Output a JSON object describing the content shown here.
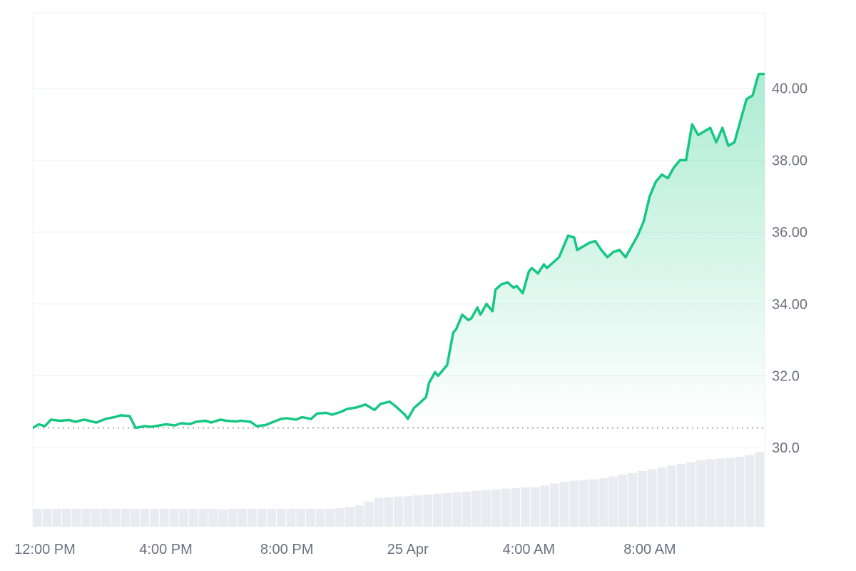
{
  "chart_data": {
    "type": "area",
    "title": "",
    "xlabel": "",
    "ylabel": "",
    "x_ticks": [
      "12:00 PM",
      "4:00 PM",
      "8:00 PM",
      "25 Apr",
      "4:00 AM",
      "8:00 AM"
    ],
    "x_tick_hours": [
      0,
      4,
      8,
      12,
      16,
      20
    ],
    "x_range_hours": [
      -0.4,
      23.8
    ],
    "y_ticks": [
      "40.00",
      "38.00",
      "36.00",
      "34.00",
      "32.0",
      "30.0"
    ],
    "y_tick_values": [
      40,
      38,
      36,
      34,
      32,
      30
    ],
    "ylim": [
      27.8,
      42.1
    ],
    "baseline": 30.55,
    "grid": true,
    "colors": {
      "up": "#16c784",
      "down": "#ea3943",
      "grid": "#eef0f3",
      "volume": "#e9ebf0",
      "baseline": "#8b8b8b"
    },
    "series": [
      {
        "x": [
          -0.4,
          -0.2,
          0.0,
          0.2,
          0.5,
          0.8,
          1.0,
          1.3,
          1.5,
          1.7,
          2.0,
          2.3,
          2.5,
          2.8,
          3.0,
          3.3,
          3.5,
          3.8,
          4.0,
          4.3,
          4.5,
          4.8,
          5.0,
          5.3,
          5.5,
          5.8,
          6.0,
          6.3,
          6.5,
          6.8,
          7.0,
          7.3,
          7.5,
          7.8,
          8.0,
          8.3,
          8.5,
          8.8,
          9.0,
          9.3,
          9.5,
          9.8,
          10.0,
          10.3,
          10.6,
          10.9,
          11.1,
          11.4,
          11.6,
          11.9,
          12.0,
          12.2,
          12.4,
          12.6,
          12.7,
          12.9,
          13.0,
          13.2,
          13.3,
          13.5,
          13.6,
          13.8,
          14.0,
          14.1,
          14.3,
          14.4,
          14.6,
          14.8,
          14.9,
          15.1,
          15.3,
          15.5,
          15.6,
          15.8,
          16.0,
          16.1,
          16.3,
          16.5,
          16.6,
          16.8,
          17.0,
          17.1,
          17.3,
          17.5,
          17.6,
          17.8,
          18.0,
          18.2,
          18.4,
          18.6,
          18.8,
          19.0,
          19.2,
          19.4,
          19.6,
          19.8,
          20.0,
          20.2,
          20.4,
          20.6,
          20.8,
          21.0,
          21.2,
          21.4,
          21.6,
          21.8,
          22.0,
          22.2,
          22.4,
          22.6,
          22.8,
          23.0,
          23.2,
          23.4,
          23.6,
          23.8
        ],
        "y": [
          30.55,
          30.65,
          30.6,
          30.78,
          30.75,
          30.77,
          30.72,
          30.78,
          30.74,
          30.7,
          30.8,
          30.85,
          30.9,
          30.88,
          30.55,
          30.6,
          30.58,
          30.62,
          30.65,
          30.62,
          30.68,
          30.66,
          30.72,
          30.75,
          30.7,
          30.78,
          30.75,
          30.73,
          30.75,
          30.72,
          30.6,
          30.63,
          30.7,
          30.8,
          30.82,
          30.78,
          30.85,
          30.8,
          30.95,
          30.97,
          30.92,
          31.0,
          31.08,
          31.12,
          31.2,
          31.05,
          31.22,
          31.28,
          31.15,
          30.92,
          30.8,
          31.1,
          31.25,
          31.4,
          31.8,
          32.1,
          32.0,
          32.2,
          32.3,
          33.2,
          33.3,
          33.7,
          33.55,
          33.6,
          33.9,
          33.7,
          34.0,
          33.8,
          34.4,
          34.55,
          34.6,
          34.45,
          34.5,
          34.3,
          34.9,
          35.0,
          34.85,
          35.1,
          35.0,
          35.15,
          35.3,
          35.5,
          35.9,
          35.85,
          35.5,
          35.6,
          35.7,
          35.75,
          35.5,
          35.3,
          35.45,
          35.5,
          35.3,
          35.6,
          35.9,
          36.3,
          37.0,
          37.4,
          37.6,
          37.5,
          37.8,
          38.0,
          38.0,
          39.0,
          38.7,
          38.8,
          38.9,
          38.5,
          38.9,
          38.4,
          38.5,
          39.1,
          39.7,
          39.8,
          40.4,
          40.4
        ]
      }
    ],
    "volume_x_range_hours": [
      -0.4,
      23.8
    ],
    "volume": [
      28.3,
      28.3,
      28.3,
      28.3,
      28.3,
      28.3,
      28.3,
      28.3,
      28.3,
      28.3,
      28.3,
      28.3,
      28.3,
      28.3,
      28.3,
      28.3,
      28.3,
      28.3,
      28.3,
      28.28,
      28.3,
      28.3,
      28.3,
      28.3,
      28.3,
      28.3,
      28.3,
      28.3,
      28.3,
      28.3,
      28.3,
      28.32,
      28.35,
      28.4,
      28.5,
      28.6,
      28.62,
      28.64,
      28.65,
      28.68,
      28.7,
      28.72,
      28.74,
      28.76,
      28.78,
      28.8,
      28.82,
      28.84,
      28.86,
      28.88,
      28.9,
      28.9,
      28.95,
      29.0,
      29.05,
      29.08,
      29.1,
      29.12,
      29.15,
      29.2,
      29.25,
      29.3,
      29.35,
      29.4,
      29.45,
      29.5,
      29.55,
      29.6,
      29.65,
      29.68,
      29.7,
      29.72,
      29.75,
      29.8,
      29.88
    ]
  }
}
